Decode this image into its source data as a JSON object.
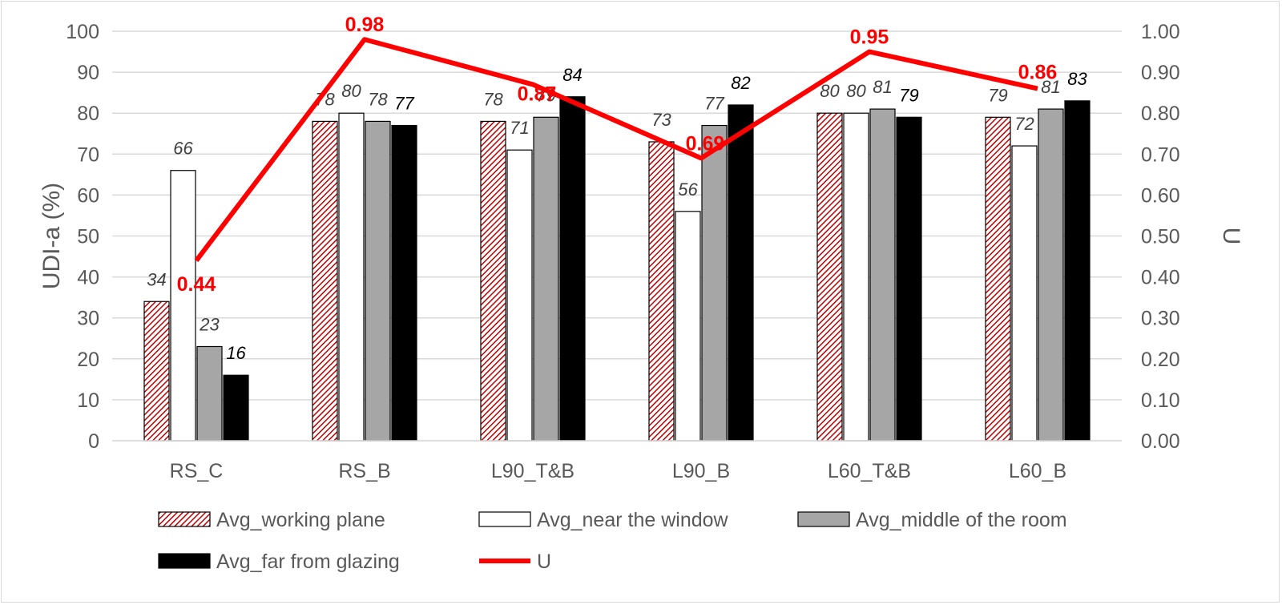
{
  "chart_data": {
    "type": "bar",
    "title": "",
    "categories": [
      "RS_C",
      "RS_B",
      "L90_T&B",
      "L90_B",
      "L60_T&B",
      "L60_B"
    ],
    "ylabel": "UDI-a (%)",
    "ylim": [
      0,
      100
    ],
    "yticks": [
      "0",
      "10",
      "20",
      "30",
      "40",
      "50",
      "60",
      "70",
      "80",
      "90",
      "100"
    ],
    "y2label": "U",
    "y2lim": [
      0,
      1
    ],
    "y2ticks": [
      "0.00",
      "0.10",
      "0.20",
      "0.30",
      "0.40",
      "0.50",
      "0.60",
      "0.70",
      "0.80",
      "0.90",
      "1.00"
    ],
    "grid": true,
    "legend_position": "bottom",
    "series": [
      {
        "name": "Avg_working plane",
        "values": [
          34,
          78,
          78,
          73,
          80,
          79
        ],
        "labels": [
          "34",
          "78",
          "78",
          "73",
          "80",
          "79"
        ],
        "style": "hatched",
        "color": "#c00000",
        "label_color": "#404040"
      },
      {
        "name": "Avg_near the window",
        "values": [
          66,
          80,
          71,
          56,
          80,
          72
        ],
        "labels": [
          "66",
          "80",
          "71",
          "56",
          "80",
          "72"
        ],
        "style": "white",
        "color": "#000000",
        "label_color": "#404040"
      },
      {
        "name": "Avg_middle of the room",
        "values": [
          23,
          78,
          79,
          77,
          81,
          81
        ],
        "labels": [
          "23",
          "78",
          "79",
          "77",
          "81",
          "81"
        ],
        "style": "gray",
        "color": "#a6a6a6",
        "label_color": "#404040"
      },
      {
        "name": "Avg_far from glazing",
        "values": [
          16,
          77,
          84,
          82,
          79,
          83
        ],
        "labels": [
          "16",
          "77",
          "84",
          "82",
          "79",
          "83"
        ],
        "style": "black",
        "color": "#000000",
        "label_color": "#000000"
      }
    ],
    "line_series": {
      "name": "U",
      "values": [
        0.44,
        0.98,
        0.87,
        0.69,
        0.95,
        0.86
      ],
      "labels": [
        "0.44",
        "0.98",
        "0.87",
        "0.69",
        "0.95",
        "0.86"
      ],
      "color": "#ff0000"
    }
  }
}
